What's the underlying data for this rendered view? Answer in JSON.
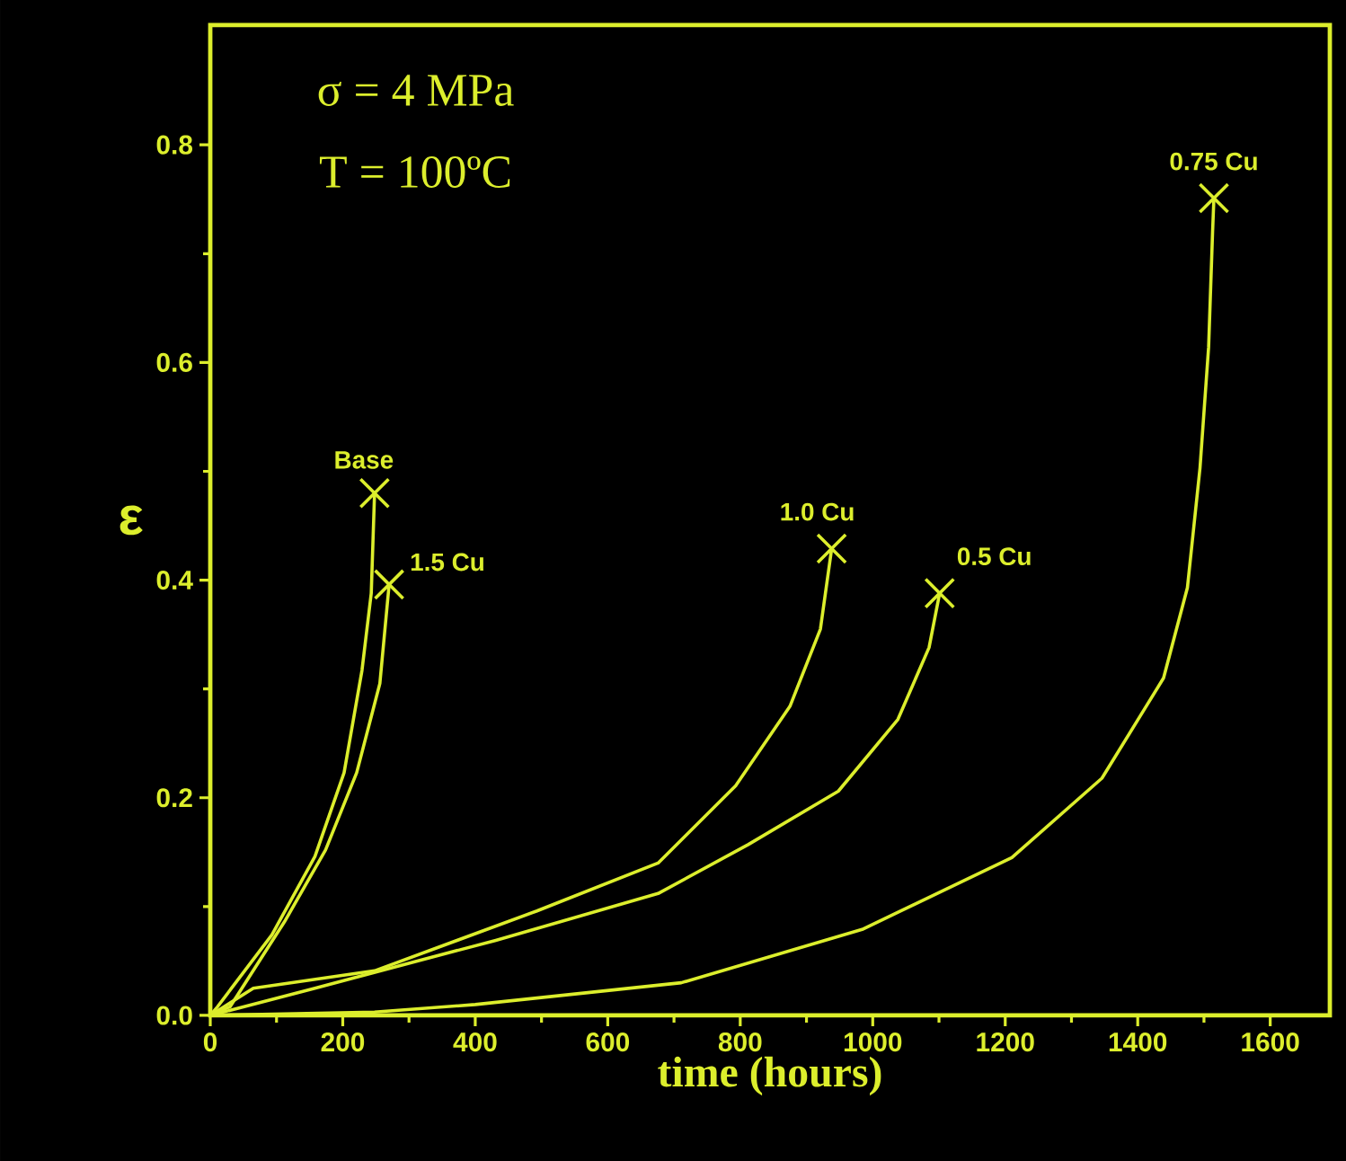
{
  "chart_data": {
    "type": "line",
    "xlabel": "time (hours)",
    "ylabel": "ε",
    "annotations": [
      "σ = 4 MPa",
      "T = 100ºC"
    ],
    "xlim": [
      0,
      1690
    ],
    "ylim": [
      0,
      0.91
    ],
    "xticks": [
      0,
      200,
      400,
      600,
      800,
      1000,
      1200,
      1400,
      1600
    ],
    "yticks": [
      {
        "value": 0,
        "label": "0.0"
      },
      0.2,
      0.4,
      0.6,
      0.8
    ],
    "grid": false,
    "legend": false,
    "series": [
      {
        "name": "Base",
        "color": "#dcee2c",
        "x": [
          0,
          11,
          93,
          158,
          202,
          229,
          243,
          248
        ],
        "values": [
          0,
          0.008,
          0.074,
          0.146,
          0.223,
          0.317,
          0.388,
          0.48
        ]
      },
      {
        "name": "1.5 Cu",
        "color": "#dcee2c",
        "x": [
          0,
          30,
          112,
          174,
          221,
          256,
          270
        ],
        "values": [
          0,
          0.008,
          0.086,
          0.152,
          0.223,
          0.305,
          0.396
        ]
      },
      {
        "name": "1.0 Cu",
        "color": "#dcee2c",
        "x": [
          0,
          65,
          248,
          493,
          676,
          793,
          875,
          921,
          938
        ],
        "values": [
          0,
          0.025,
          0.041,
          0.096,
          0.14,
          0.211,
          0.284,
          0.355,
          0.429
        ]
      },
      {
        "name": "0.5 Cu",
        "color": "#dcee2c",
        "x": [
          0,
          158,
          431,
          676,
          812,
          948,
          1038,
          1085,
          1101
        ],
        "values": [
          0,
          0.025,
          0.069,
          0.112,
          0.157,
          0.206,
          0.272,
          0.338,
          0.388
        ]
      },
      {
        "name": "0.75 Cu",
        "color": "#dcee2c",
        "x": [
          0,
          248,
          400,
          711,
          984,
          1210,
          1346,
          1439,
          1475,
          1494,
          1507,
          1513,
          1515
        ],
        "values": [
          0,
          0.003,
          0.01,
          0.03,
          0.079,
          0.145,
          0.218,
          0.31,
          0.393,
          0.503,
          0.614,
          0.72,
          0.751
        ]
      },
      {
        "type": "scatter",
        "marker": "cross",
        "color": "#dcee2c",
        "x": [
          248,
          270,
          938,
          1101,
          1515
        ],
        "values": [
          0.48,
          0.396,
          0.429,
          0.388,
          0.751
        ]
      }
    ]
  }
}
